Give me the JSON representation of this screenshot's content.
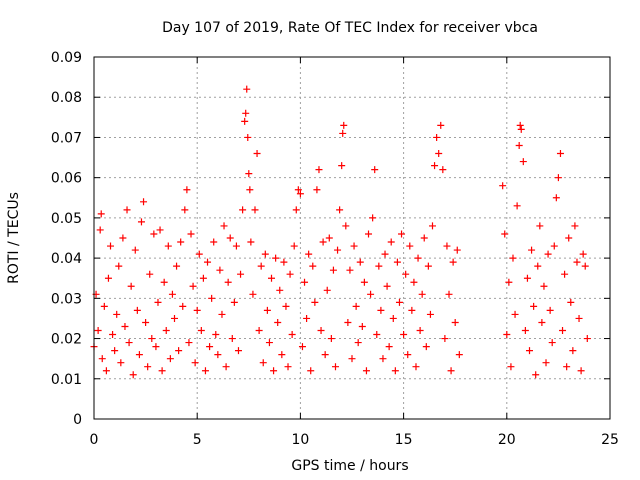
{
  "chart_data": {
    "type": "scatter",
    "title": "Day 107 of 2019, Rate Of TEC Index for receiver vbca",
    "xlabel": "GPS time / hours",
    "ylabel": "ROTI / TECUs",
    "xlim": [
      0,
      25
    ],
    "ylim": [
      0,
      0.09
    ],
    "x_ticks": [
      "0",
      "5",
      "10",
      "15",
      "20",
      "25"
    ],
    "y_ticks": [
      "0",
      "0.01",
      "0.02",
      "0.03",
      "0.04",
      "0.05",
      "0.06",
      "0.07",
      "0.08",
      "0.09"
    ],
    "grid": true,
    "legend": "none",
    "marker": "plus",
    "color": "#ff0000",
    "data_gaps_hours": [
      [
        17.8,
        19.8
      ]
    ],
    "points": [
      [
        0.0,
        0.018
      ],
      [
        0.1,
        0.031
      ],
      [
        0.2,
        0.022
      ],
      [
        0.3,
        0.047
      ],
      [
        0.35,
        0.051
      ],
      [
        0.4,
        0.015
      ],
      [
        0.5,
        0.028
      ],
      [
        0.6,
        0.012
      ],
      [
        0.7,
        0.035
      ],
      [
        0.8,
        0.043
      ],
      [
        0.9,
        0.021
      ],
      [
        1.0,
        0.017
      ],
      [
        1.1,
        0.026
      ],
      [
        1.2,
        0.038
      ],
      [
        1.3,
        0.014
      ],
      [
        1.4,
        0.045
      ],
      [
        1.5,
        0.023
      ],
      [
        1.6,
        0.052
      ],
      [
        1.7,
        0.019
      ],
      [
        1.8,
        0.033
      ],
      [
        1.9,
        0.011
      ],
      [
        2.0,
        0.042
      ],
      [
        2.1,
        0.027
      ],
      [
        2.2,
        0.016
      ],
      [
        2.3,
        0.049
      ],
      [
        2.4,
        0.054
      ],
      [
        2.5,
        0.024
      ],
      [
        2.6,
        0.013
      ],
      [
        2.7,
        0.036
      ],
      [
        2.8,
        0.02
      ],
      [
        2.9,
        0.046
      ],
      [
        3.0,
        0.018
      ],
      [
        3.1,
        0.029
      ],
      [
        3.2,
        0.047
      ],
      [
        3.3,
        0.012
      ],
      [
        3.4,
        0.034
      ],
      [
        3.5,
        0.022
      ],
      [
        3.6,
        0.043
      ],
      [
        3.7,
        0.015
      ],
      [
        3.8,
        0.031
      ],
      [
        3.9,
        0.025
      ],
      [
        4.0,
        0.038
      ],
      [
        4.1,
        0.017
      ],
      [
        4.2,
        0.044
      ],
      [
        4.3,
        0.028
      ],
      [
        4.4,
        0.052
      ],
      [
        4.5,
        0.057
      ],
      [
        4.6,
        0.019
      ],
      [
        4.7,
        0.046
      ],
      [
        4.8,
        0.033
      ],
      [
        4.9,
        0.014
      ],
      [
        5.0,
        0.027
      ],
      [
        5.1,
        0.041
      ],
      [
        5.2,
        0.022
      ],
      [
        5.3,
        0.035
      ],
      [
        5.4,
        0.012
      ],
      [
        5.5,
        0.039
      ],
      [
        5.6,
        0.018
      ],
      [
        5.7,
        0.03
      ],
      [
        5.8,
        0.044
      ],
      [
        5.9,
        0.021
      ],
      [
        6.0,
        0.016
      ],
      [
        6.1,
        0.037
      ],
      [
        6.2,
        0.026
      ],
      [
        6.3,
        0.048
      ],
      [
        6.4,
        0.013
      ],
      [
        6.5,
        0.034
      ],
      [
        6.6,
        0.045
      ],
      [
        6.7,
        0.02
      ],
      [
        6.8,
        0.029
      ],
      [
        6.9,
        0.043
      ],
      [
        7.0,
        0.017
      ],
      [
        7.1,
        0.036
      ],
      [
        7.2,
        0.052
      ],
      [
        7.3,
        0.074
      ],
      [
        7.35,
        0.076
      ],
      [
        7.4,
        0.082
      ],
      [
        7.45,
        0.07
      ],
      [
        7.5,
        0.061
      ],
      [
        7.55,
        0.057
      ],
      [
        7.6,
        0.044
      ],
      [
        7.7,
        0.031
      ],
      [
        7.8,
        0.052
      ],
      [
        7.9,
        0.066
      ],
      [
        8.0,
        0.022
      ],
      [
        8.1,
        0.038
      ],
      [
        8.2,
        0.014
      ],
      [
        8.3,
        0.041
      ],
      [
        8.4,
        0.027
      ],
      [
        8.5,
        0.019
      ],
      [
        8.6,
        0.035
      ],
      [
        8.7,
        0.012
      ],
      [
        8.8,
        0.04
      ],
      [
        8.9,
        0.024
      ],
      [
        9.0,
        0.032
      ],
      [
        9.1,
        0.016
      ],
      [
        9.2,
        0.039
      ],
      [
        9.3,
        0.028
      ],
      [
        9.4,
        0.013
      ],
      [
        9.5,
        0.036
      ],
      [
        9.6,
        0.021
      ],
      [
        9.7,
        0.043
      ],
      [
        9.8,
        0.052
      ],
      [
        9.9,
        0.057
      ],
      [
        10.0,
        0.056
      ],
      [
        10.1,
        0.018
      ],
      [
        10.2,
        0.034
      ],
      [
        10.3,
        0.025
      ],
      [
        10.4,
        0.041
      ],
      [
        10.5,
        0.012
      ],
      [
        10.6,
        0.038
      ],
      [
        10.7,
        0.029
      ],
      [
        10.8,
        0.057
      ],
      [
        10.9,
        0.062
      ],
      [
        11.0,
        0.022
      ],
      [
        11.1,
        0.044
      ],
      [
        11.2,
        0.016
      ],
      [
        11.3,
        0.032
      ],
      [
        11.4,
        0.045
      ],
      [
        11.5,
        0.02
      ],
      [
        11.6,
        0.037
      ],
      [
        11.7,
        0.013
      ],
      [
        11.8,
        0.042
      ],
      [
        11.9,
        0.052
      ],
      [
        12.0,
        0.063
      ],
      [
        12.05,
        0.071
      ],
      [
        12.1,
        0.073
      ],
      [
        12.2,
        0.048
      ],
      [
        12.3,
        0.024
      ],
      [
        12.4,
        0.037
      ],
      [
        12.5,
        0.015
      ],
      [
        12.6,
        0.043
      ],
      [
        12.7,
        0.028
      ],
      [
        12.8,
        0.019
      ],
      [
        12.9,
        0.039
      ],
      [
        13.0,
        0.023
      ],
      [
        13.1,
        0.034
      ],
      [
        13.2,
        0.012
      ],
      [
        13.3,
        0.046
      ],
      [
        13.4,
        0.031
      ],
      [
        13.5,
        0.05
      ],
      [
        13.6,
        0.062
      ],
      [
        13.7,
        0.021
      ],
      [
        13.8,
        0.038
      ],
      [
        13.9,
        0.027
      ],
      [
        14.0,
        0.015
      ],
      [
        14.1,
        0.041
      ],
      [
        14.2,
        0.033
      ],
      [
        14.3,
        0.018
      ],
      [
        14.4,
        0.044
      ],
      [
        14.5,
        0.025
      ],
      [
        14.6,
        0.012
      ],
      [
        14.7,
        0.039
      ],
      [
        14.8,
        0.029
      ],
      [
        14.9,
        0.046
      ],
      [
        15.0,
        0.021
      ],
      [
        15.1,
        0.036
      ],
      [
        15.2,
        0.016
      ],
      [
        15.3,
        0.043
      ],
      [
        15.4,
        0.027
      ],
      [
        15.5,
        0.034
      ],
      [
        15.6,
        0.013
      ],
      [
        15.7,
        0.04
      ],
      [
        15.8,
        0.022
      ],
      [
        15.9,
        0.031
      ],
      [
        16.0,
        0.045
      ],
      [
        16.1,
        0.018
      ],
      [
        16.2,
        0.038
      ],
      [
        16.3,
        0.026
      ],
      [
        16.4,
        0.048
      ],
      [
        16.5,
        0.063
      ],
      [
        16.6,
        0.07
      ],
      [
        16.7,
        0.066
      ],
      [
        16.8,
        0.073
      ],
      [
        16.9,
        0.062
      ],
      [
        17.0,
        0.02
      ],
      [
        17.1,
        0.043
      ],
      [
        17.2,
        0.031
      ],
      [
        17.3,
        0.012
      ],
      [
        17.4,
        0.039
      ],
      [
        17.5,
        0.024
      ],
      [
        17.6,
        0.042
      ],
      [
        17.7,
        0.016
      ],
      [
        19.8,
        0.058
      ],
      [
        19.9,
        0.046
      ],
      [
        20.0,
        0.021
      ],
      [
        20.1,
        0.034
      ],
      [
        20.2,
        0.013
      ],
      [
        20.3,
        0.04
      ],
      [
        20.4,
        0.026
      ],
      [
        20.5,
        0.053
      ],
      [
        20.6,
        0.068
      ],
      [
        20.65,
        0.073
      ],
      [
        20.7,
        0.072
      ],
      [
        20.8,
        0.064
      ],
      [
        20.9,
        0.022
      ],
      [
        21.0,
        0.035
      ],
      [
        21.1,
        0.017
      ],
      [
        21.2,
        0.042
      ],
      [
        21.3,
        0.028
      ],
      [
        21.4,
        0.011
      ],
      [
        21.5,
        0.038
      ],
      [
        21.6,
        0.048
      ],
      [
        21.7,
        0.024
      ],
      [
        21.8,
        0.033
      ],
      [
        21.9,
        0.014
      ],
      [
        22.0,
        0.041
      ],
      [
        22.1,
        0.027
      ],
      [
        22.2,
        0.019
      ],
      [
        22.3,
        0.043
      ],
      [
        22.4,
        0.055
      ],
      [
        22.5,
        0.06
      ],
      [
        22.6,
        0.066
      ],
      [
        22.7,
        0.022
      ],
      [
        22.8,
        0.036
      ],
      [
        22.9,
        0.013
      ],
      [
        23.0,
        0.045
      ],
      [
        23.1,
        0.029
      ],
      [
        23.2,
        0.017
      ],
      [
        23.3,
        0.048
      ],
      [
        23.4,
        0.039
      ],
      [
        23.5,
        0.025
      ],
      [
        23.6,
        0.012
      ],
      [
        23.7,
        0.041
      ],
      [
        23.8,
        0.038
      ],
      [
        23.9,
        0.02
      ]
    ]
  }
}
